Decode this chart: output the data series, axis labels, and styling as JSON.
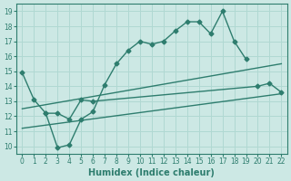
{
  "xlabel": "Humidex (Indice chaleur)",
  "xlim": [
    -0.5,
    22.5
  ],
  "ylim": [
    9.5,
    19.5
  ],
  "yticks": [
    10,
    11,
    12,
    13,
    14,
    15,
    16,
    17,
    18,
    19
  ],
  "xticks": [
    0,
    1,
    2,
    3,
    4,
    5,
    6,
    7,
    8,
    9,
    10,
    11,
    12,
    13,
    14,
    15,
    16,
    17,
    18,
    19,
    20,
    21,
    22
  ],
  "background_color": "#cce8e4",
  "grid_color": "#b0d8d2",
  "line_color": "#2e7d6e",
  "series": [
    {
      "x": [
        0,
        1,
        2,
        3,
        4,
        5,
        6,
        7,
        8,
        9,
        10,
        11,
        12,
        13,
        14,
        15,
        16,
        17,
        18,
        19,
        20
      ],
      "y": [
        14.9,
        13.1,
        12.2,
        9.9,
        10.1,
        11.8,
        12.3,
        14.1,
        15.5,
        16.4,
        17.0,
        16.8,
        17.0,
        17.7,
        18.3,
        18.3,
        17.5,
        19.0,
        17.0,
        15.8,
        null
      ],
      "marker": "D",
      "markersize": 2.5,
      "linewidth": 1.0,
      "has_nulls": true
    },
    {
      "x": [
        2,
        3,
        4,
        5,
        6,
        20,
        21,
        22
      ],
      "y": [
        12.2,
        12.2,
        11.8,
        13.1,
        13.0,
        14.0,
        14.2,
        13.6
      ],
      "marker": "D",
      "markersize": 2.5,
      "linewidth": 1.0,
      "has_nulls": false
    },
    {
      "x": [
        0,
        22
      ],
      "y": [
        12.5,
        15.5
      ],
      "marker": null,
      "markersize": 0,
      "linewidth": 1.0,
      "has_nulls": false
    },
    {
      "x": [
        0,
        22
      ],
      "y": [
        11.2,
        13.5
      ],
      "marker": null,
      "markersize": 0,
      "linewidth": 1.0,
      "has_nulls": false
    }
  ]
}
